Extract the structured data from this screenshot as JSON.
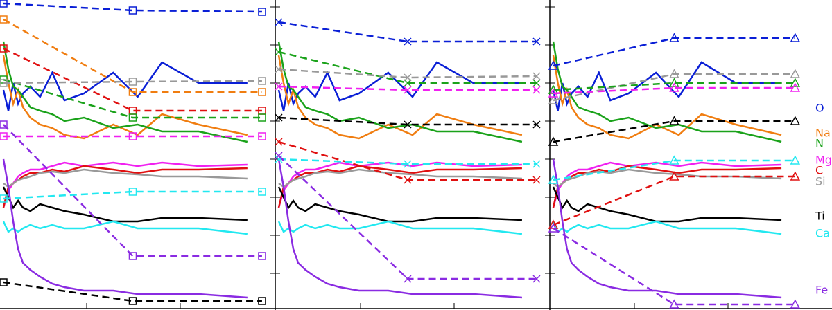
{
  "chart_data": [
    {
      "type": "line",
      "xlim": [
        0,
        110
      ],
      "ylim": [
        0,
        448
      ],
      "x": [
        0,
        2,
        4,
        6,
        8,
        11,
        15,
        20,
        25,
        33,
        45,
        55,
        65,
        80,
        100
      ],
      "series": [
        {
          "color": "#0a1fd6",
          "values": [
            318,
            288,
            328,
            298,
            313,
            323,
            308,
            343,
            303,
            313,
            343,
            308,
            358,
            328,
            328
          ]
        },
        {
          "color": "#f07d10",
          "values": [
            368,
            328,
            298,
            318,
            293,
            278,
            268,
            263,
            253,
            248,
            268,
            253,
            283,
            268,
            253
          ]
        },
        {
          "color": "#1aa21a",
          "values": [
            388,
            348,
            323,
            318,
            308,
            293,
            288,
            283,
            273,
            278,
            263,
            268,
            258,
            258,
            243
          ]
        },
        {
          "color": "#f020f0",
          "values": [
            148,
            173,
            183,
            193,
            198,
            203,
            203,
            208,
            213,
            208,
            213,
            208,
            213,
            208,
            210
          ]
        },
        {
          "color": "#e01010",
          "values": [
            148,
            178,
            183,
            188,
            193,
            198,
            198,
            203,
            200,
            208,
            203,
            198,
            203,
            203,
            205
          ]
        },
        {
          "color": "#999999",
          "values": [
            183,
            178,
            183,
            188,
            190,
            193,
            198,
            200,
            198,
            203,
            198,
            196,
            193,
            193,
            190
          ]
        },
        {
          "color": "#000000",
          "values": [
            178,
            163,
            148,
            158,
            148,
            143,
            153,
            148,
            143,
            138,
            128,
            128,
            133,
            133,
            130
          ]
        },
        {
          "color": "#22e8f0",
          "values": [
            128,
            113,
            118,
            113,
            118,
            123,
            118,
            123,
            118,
            118,
            128,
            118,
            118,
            118,
            110
          ]
        },
        {
          "color": "#8a2be2",
          "values": [
            218,
            178,
            128,
            88,
            68,
            58,
            48,
            38,
            33,
            28,
            28,
            23,
            23,
            23,
            18
          ]
        },
        {
          "color": "#0a1fd6",
          "style": "dashed",
          "marker": "square",
          "x": [
            0,
            53,
            106
          ],
          "values": [
            443,
            433,
            431
          ]
        },
        {
          "color": "#f07d10",
          "style": "dashed",
          "marker": "square",
          "x": [
            0,
            53,
            106
          ],
          "values": [
            420,
            315,
            315
          ]
        },
        {
          "color": "#e01010",
          "style": "dashed",
          "marker": "square",
          "x": [
            0,
            53,
            106
          ],
          "values": [
            378,
            288,
            288
          ]
        },
        {
          "color": "#1aa21a",
          "style": "dashed",
          "marker": "square",
          "x": [
            0,
            53,
            106
          ],
          "values": [
            333,
            278,
            278
          ]
        },
        {
          "color": "#999999",
          "style": "dashed",
          "marker": "square",
          "x": [
            0,
            53,
            106
          ],
          "values": [
            328,
            330,
            331
          ]
        },
        {
          "color": "#f020f0",
          "style": "dashed",
          "marker": "square",
          "x": [
            0,
            53,
            106
          ],
          "values": [
            251,
            251,
            251
          ]
        },
        {
          "color": "#8a2be2",
          "style": "dashed",
          "marker": "square",
          "x": [
            0,
            53,
            106
          ],
          "values": [
            268,
            78,
            78
          ]
        },
        {
          "color": "#22e8f0",
          "style": "dashed",
          "marker": "square",
          "x": [
            0,
            53,
            106
          ],
          "values": [
            161,
            171,
            171
          ]
        },
        {
          "color": "#000000",
          "style": "dashed",
          "marker": "square",
          "x": [
            0,
            53,
            106
          ],
          "values": [
            40,
            13,
            13
          ]
        }
      ]
    },
    {
      "type": "line",
      "xlim": [
        0,
        110
      ],
      "ylim": [
        0,
        448
      ],
      "x": [
        0,
        2,
        4,
        6,
        8,
        11,
        15,
        20,
        25,
        33,
        45,
        55,
        65,
        80,
        100
      ],
      "series": [
        {
          "color": "#0a1fd6",
          "values": [
            318,
            288,
            328,
            298,
            313,
            323,
            308,
            343,
            303,
            313,
            343,
            308,
            358,
            328,
            328
          ]
        },
        {
          "color": "#f07d10",
          "values": [
            368,
            328,
            298,
            318,
            293,
            278,
            268,
            263,
            253,
            248,
            268,
            253,
            283,
            268,
            253
          ]
        },
        {
          "color": "#1aa21a",
          "values": [
            388,
            348,
            323,
            318,
            308,
            293,
            288,
            283,
            273,
            278,
            263,
            268,
            258,
            258,
            243
          ]
        },
        {
          "color": "#f020f0",
          "values": [
            148,
            173,
            183,
            193,
            198,
            203,
            203,
            208,
            213,
            208,
            213,
            208,
            213,
            208,
            210
          ]
        },
        {
          "color": "#e01010",
          "values": [
            148,
            178,
            183,
            188,
            193,
            198,
            198,
            203,
            200,
            208,
            203,
            198,
            203,
            203,
            205
          ]
        },
        {
          "color": "#999999",
          "values": [
            183,
            178,
            183,
            188,
            190,
            193,
            198,
            200,
            198,
            203,
            198,
            196,
            193,
            193,
            190
          ]
        },
        {
          "color": "#000000",
          "values": [
            178,
            163,
            148,
            158,
            148,
            143,
            153,
            148,
            143,
            138,
            128,
            128,
            133,
            133,
            130
          ]
        },
        {
          "color": "#22e8f0",
          "values": [
            128,
            113,
            118,
            113,
            118,
            123,
            118,
            123,
            118,
            118,
            128,
            118,
            118,
            118,
            110
          ]
        },
        {
          "color": "#8a2be2",
          "values": [
            218,
            178,
            128,
            88,
            68,
            58,
            48,
            38,
            33,
            28,
            28,
            23,
            23,
            23,
            18
          ]
        },
        {
          "color": "#0a1fd6",
          "style": "dashed",
          "marker": "x",
          "x": [
            0,
            53,
            106
          ],
          "values": [
            416,
            388,
            388
          ]
        },
        {
          "color": "#1aa21a",
          "style": "dashed",
          "marker": "x",
          "x": [
            0,
            53,
            106
          ],
          "values": [
            373,
            328,
            328
          ]
        },
        {
          "color": "#999999",
          "style": "dashed",
          "marker": "x",
          "x": [
            0,
            53,
            106
          ],
          "values": [
            348,
            336,
            338
          ]
        },
        {
          "color": "#f020f0",
          "style": "dashed",
          "marker": "x",
          "x": [
            0,
            53,
            106
          ],
          "values": [
            323,
            318,
            318
          ]
        },
        {
          "color": "#000000",
          "style": "dashed",
          "marker": "x",
          "x": [
            0,
            53,
            106
          ],
          "values": [
            278,
            268,
            268
          ]
        },
        {
          "color": "#e01010",
          "style": "dashed",
          "marker": "x",
          "x": [
            0,
            53,
            106
          ],
          "values": [
            243,
            188,
            188
          ]
        },
        {
          "color": "#22e8f0",
          "style": "dashed",
          "marker": "x",
          "x": [
            0,
            53,
            106
          ],
          "values": [
            218,
            211,
            211
          ]
        },
        {
          "color": "#8a2be2",
          "style": "dashed",
          "marker": "x",
          "x": [
            0,
            53,
            106
          ],
          "values": [
            223,
            45,
            45
          ]
        }
      ]
    },
    {
      "type": "line",
      "xlim": [
        0,
        110
      ],
      "ylim": [
        0,
        448
      ],
      "series_labels": true,
      "x": [
        0,
        2,
        4,
        6,
        8,
        11,
        15,
        20,
        25,
        33,
        45,
        55,
        65,
        80,
        100
      ],
      "series": [
        {
          "name": "O",
          "color": "#0a1fd6",
          "values": [
            318,
            288,
            328,
            298,
            313,
            323,
            308,
            343,
            303,
            313,
            343,
            308,
            358,
            328,
            328
          ]
        },
        {
          "name": "Na",
          "color": "#f07d10",
          "values": [
            368,
            328,
            298,
            318,
            293,
            278,
            268,
            263,
            253,
            248,
            268,
            253,
            283,
            268,
            253
          ]
        },
        {
          "name": "N",
          "color": "#1aa21a",
          "values": [
            388,
            348,
            323,
            318,
            308,
            293,
            288,
            283,
            273,
            278,
            263,
            268,
            258,
            258,
            243
          ]
        },
        {
          "name": "Mg",
          "color": "#f020f0",
          "values": [
            148,
            173,
            183,
            193,
            198,
            203,
            203,
            208,
            213,
            208,
            213,
            208,
            213,
            208,
            210
          ]
        },
        {
          "name": "C",
          "color": "#e01010",
          "values": [
            148,
            178,
            183,
            188,
            193,
            198,
            198,
            203,
            200,
            208,
            203,
            198,
            203,
            203,
            205
          ]
        },
        {
          "name": "Si",
          "color": "#999999",
          "values": [
            183,
            178,
            183,
            188,
            190,
            193,
            198,
            200,
            198,
            203,
            198,
            196,
            193,
            193,
            190
          ]
        },
        {
          "name": "Ti",
          "color": "#000000",
          "values": [
            178,
            163,
            148,
            158,
            148,
            143,
            153,
            148,
            143,
            138,
            128,
            128,
            133,
            133,
            130
          ]
        },
        {
          "name": "Ca",
          "color": "#22e8f0",
          "values": [
            128,
            113,
            118,
            113,
            118,
            123,
            118,
            123,
            118,
            118,
            128,
            118,
            118,
            118,
            110
          ]
        },
        {
          "name": "Fe",
          "color": "#8a2be2",
          "values": [
            218,
            178,
            128,
            88,
            68,
            58,
            48,
            38,
            33,
            28,
            28,
            23,
            23,
            23,
            18
          ]
        },
        {
          "color": "#0a1fd6",
          "style": "dashed",
          "marker": "triangle",
          "x": [
            0,
            53,
            106
          ],
          "values": [
            353,
            393,
            393
          ]
        },
        {
          "color": "#999999",
          "style": "dashed",
          "marker": "triangle",
          "x": [
            0,
            53,
            106
          ],
          "values": [
            303,
            341,
            341
          ]
        },
        {
          "color": "#1aa21a",
          "style": "dashed",
          "marker": "triangle",
          "x": [
            0,
            53,
            106
          ],
          "values": [
            318,
            328,
            328
          ]
        },
        {
          "color": "#f020f0",
          "style": "dashed",
          "marker": "triangle",
          "x": [
            0,
            53,
            106
          ],
          "values": [
            313,
            321,
            321
          ]
        },
        {
          "color": "#000000",
          "style": "dashed",
          "marker": "triangle",
          "x": [
            0,
            53,
            106
          ],
          "values": [
            243,
            273,
            273
          ]
        },
        {
          "color": "#22e8f0",
          "style": "dashed",
          "marker": "triangle",
          "x": [
            0,
            53,
            106
          ],
          "values": [
            188,
            216,
            216
          ]
        },
        {
          "color": "#e01010",
          "style": "dashed",
          "marker": "triangle",
          "x": [
            0,
            53,
            106
          ],
          "values": [
            123,
            193,
            193
          ]
        },
        {
          "color": "#8a2be2",
          "style": "dashed",
          "marker": "triangle",
          "x": [
            0,
            53,
            106
          ],
          "values": [
            118,
            8,
            8
          ]
        }
      ]
    }
  ]
}
